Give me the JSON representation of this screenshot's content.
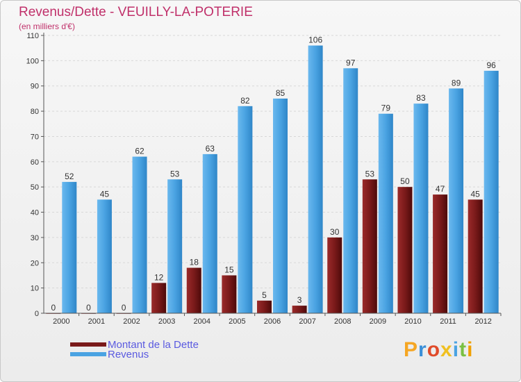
{
  "title": "Revenus/Dette - VEUILLY-LA-POTERIE",
  "subtitle": "(en milliers d'€)",
  "colors": {
    "dette": "#7a1a1a",
    "revenus": "#4aa3e2",
    "title": "#c0306a"
  },
  "logo": {
    "letters": [
      "P",
      "r",
      "o",
      "x",
      "i",
      "t",
      "i"
    ],
    "colors": [
      "#f5a623",
      "#3a8fd8",
      "#e04b2a",
      "#f0c020",
      "#4aa3e2",
      "#7ac043",
      "#f0a000"
    ]
  },
  "chart_data": {
    "type": "bar",
    "categories": [
      "2000",
      "2001",
      "2002",
      "2003",
      "2004",
      "2005",
      "2006",
      "2007",
      "2008",
      "2009",
      "2010",
      "2011",
      "2012"
    ],
    "series": [
      {
        "name": "Montant de la Dette",
        "values": [
          0,
          0,
          0,
          12,
          18,
          15,
          5,
          3,
          30,
          53,
          50,
          47,
          45
        ]
      },
      {
        "name": "Revenus",
        "values": [
          52,
          45,
          62,
          53,
          63,
          82,
          85,
          106,
          97,
          79,
          83,
          89,
          96
        ]
      }
    ],
    "yticks": [
      0,
      10,
      20,
      30,
      40,
      50,
      60,
      70,
      80,
      90,
      100,
      110
    ],
    "ylim": [
      0,
      110
    ],
    "grid": true,
    "legend": "bottom-left"
  }
}
